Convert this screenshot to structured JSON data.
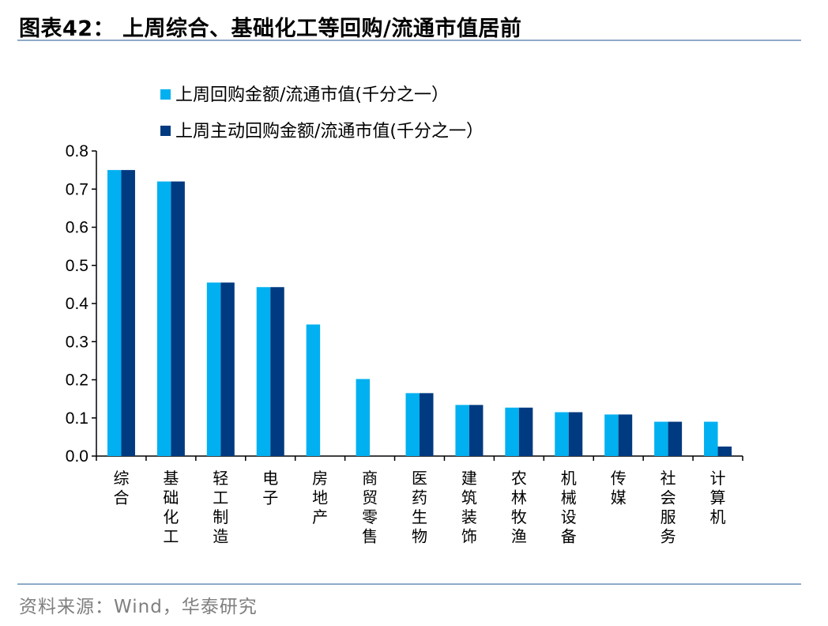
{
  "header": {
    "title": "图表42： 上周综合、基础化工等回购/流通市值居前"
  },
  "footer": {
    "source": "资料来源：Wind，华泰研究"
  },
  "chart_data": {
    "type": "bar",
    "categories": [
      "综合",
      "基础化工",
      "轻工制造",
      "电子",
      "房地产",
      "商贸零售",
      "医药生物",
      "建筑装饰",
      "农林牧渔",
      "机械设备",
      "传媒",
      "社会服务",
      "计算机"
    ],
    "series": [
      {
        "name": "上周回购金额/流通市值(千分之一）",
        "color": "#00b0f0",
        "values": [
          0.75,
          0.72,
          0.455,
          0.443,
          0.345,
          0.202,
          0.165,
          0.134,
          0.127,
          0.115,
          0.109,
          0.09,
          0.09
        ]
      },
      {
        "name": "上周主动回购金额/流通市值(千分之一）",
        "color": "#003a80",
        "values": [
          0.75,
          0.72,
          0.455,
          0.443,
          0,
          0,
          0.165,
          0.134,
          0.127,
          0.115,
          0.109,
          0.09,
          0.025
        ]
      }
    ],
    "ylim": [
      0,
      0.8
    ],
    "yticks": [
      "0.0",
      "0.1",
      "0.2",
      "0.3",
      "0.4",
      "0.5",
      "0.6",
      "0.7",
      "0.8"
    ],
    "legend_position": "top-left",
    "grid": false
  }
}
